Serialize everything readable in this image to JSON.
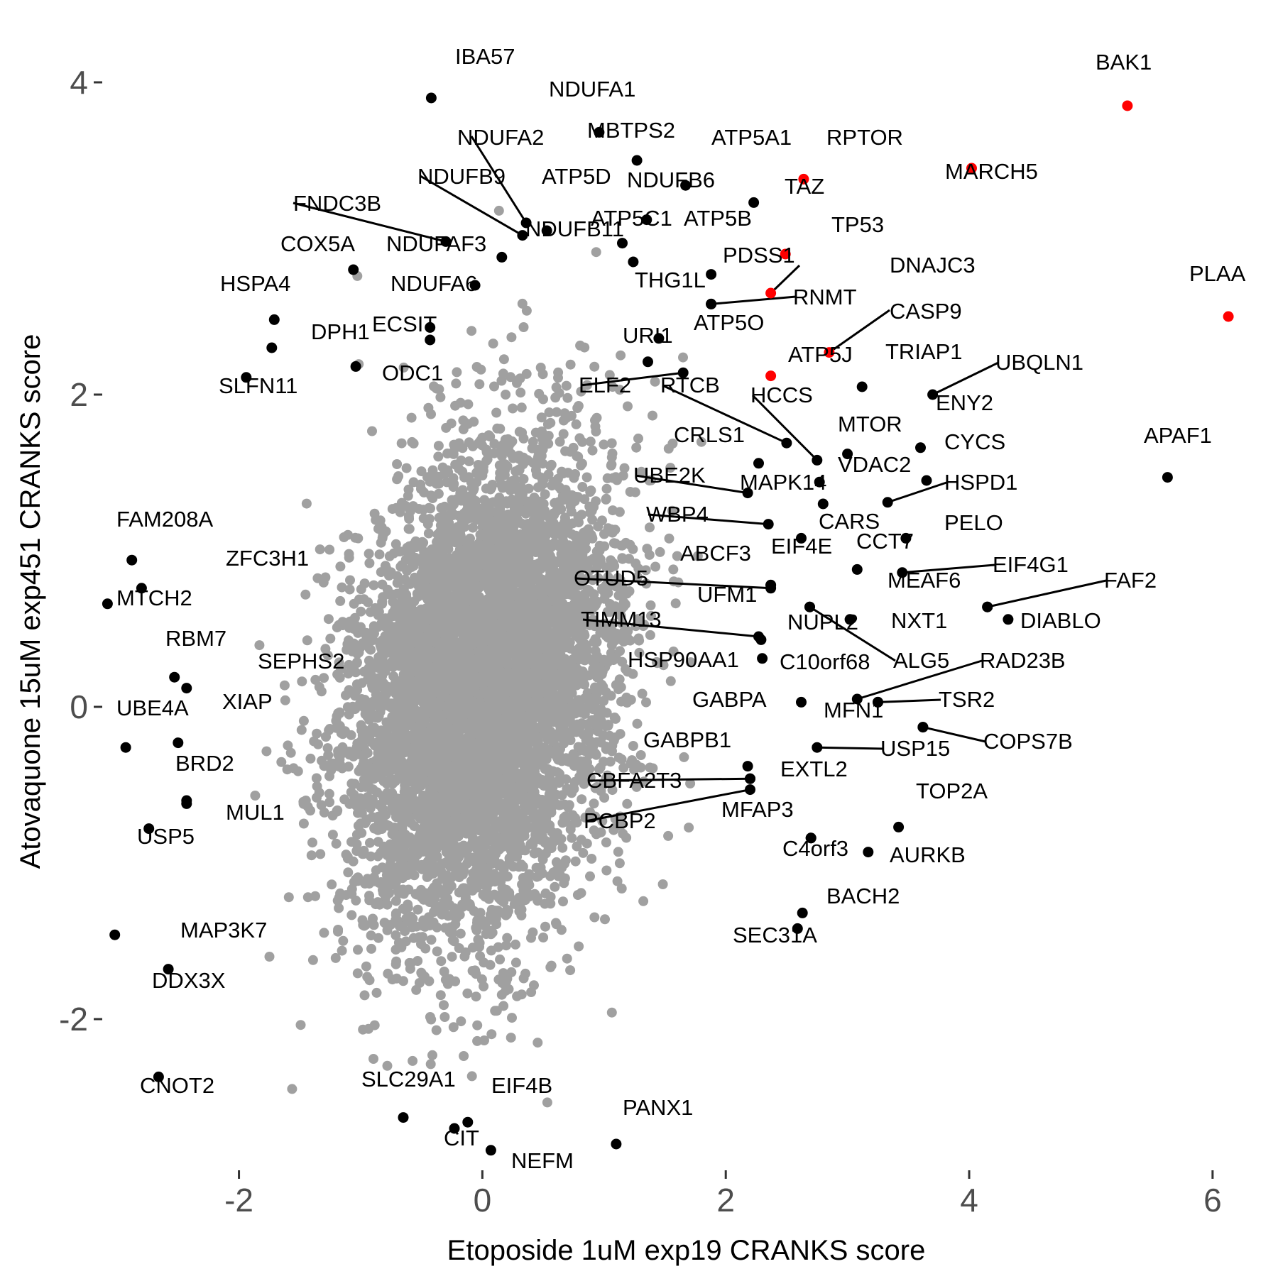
{
  "chart_data": {
    "type": "scatter",
    "title": "",
    "xlabel": "Etoposide 1uM exp19 CRANKS score",
    "ylabel": "Atovaquone 15uM exp451 CRANKS score",
    "xlim": [
      -3.1,
      6.45
    ],
    "ylim": [
      -2.95,
      4.3
    ],
    "x_ticks": [
      -2,
      0,
      2,
      4,
      6
    ],
    "y_ticks": [
      -2,
      0,
      2,
      4
    ],
    "x_tick_labels": [
      "-2",
      "0",
      "2",
      "4",
      "6"
    ],
    "y_tick_labels": [
      "-2",
      "0",
      "2",
      "4"
    ],
    "grid": false,
    "legend": "none",
    "colors": {
      "background": "#ffffff",
      "highlight": "#ff0000",
      "labeled": "#000000",
      "background_points": "#a0a0a0",
      "tick_text": "#4d4d4d"
    },
    "background_cloud": {
      "note_points": "several thousand unlabeled genes",
      "center": [
        0.0,
        0.1
      ],
      "sd_x": 0.55,
      "sd_y": 0.75,
      "color": "#a0a0a0"
    },
    "series": [
      {
        "name": "highlighted",
        "color": "#ff0000",
        "points": [
          {
            "label": "BAK1",
            "x": 5.3,
            "y": 3.85
          },
          {
            "label": "MARCH5",
            "x": 4.02,
            "y": 3.45
          },
          {
            "label": "RPTOR",
            "x": 2.64,
            "y": 3.38
          },
          {
            "label": "TP53",
            "x": 2.49,
            "y": 2.9
          },
          {
            "label": "DNAJC3",
            "x": 2.37,
            "y": 2.65
          },
          {
            "label": "CASP9",
            "x": 2.85,
            "y": 2.27
          },
          {
            "label": "ATP5J",
            "x": 2.37,
            "y": 2.12
          },
          {
            "label": "PLAA",
            "x": 6.13,
            "y": 2.5
          }
        ]
      },
      {
        "name": "labeled",
        "color": "#000000",
        "points": [
          {
            "label": "IBA57",
            "x": -0.42,
            "y": 3.9
          },
          {
            "label": "NDUFA1",
            "x": 0.96,
            "y": 3.68
          },
          {
            "label": "MBTPS2",
            "x": 1.27,
            "y": 3.5
          },
          {
            "label": "NDUFA2",
            "x": 0.36,
            "y": 3.1
          },
          {
            "label": "ATP5A1",
            "x": 1.67,
            "y": 3.34
          },
          {
            "label": "ATP5D",
            "x": 0.53,
            "y": 3.05
          },
          {
            "label": "NDUFB9",
            "x": 0.33,
            "y": 3.02
          },
          {
            "label": "NDUFB6",
            "x": 1.35,
            "y": 3.12
          },
          {
            "label": "TAZ",
            "x": 2.23,
            "y": 3.23
          },
          {
            "label": "FNDC3B",
            "x": -0.3,
            "y": 2.98
          },
          {
            "label": "ATP5C1",
            "x": 1.15,
            "y": 2.97
          },
          {
            "label": "ATP5B",
            "x": 1.24,
            "y": 2.85
          },
          {
            "label": "NDUFB11",
            "x": 0.16,
            "y": 2.88
          },
          {
            "label": "COX5A",
            "x": -1.06,
            "y": 2.8
          },
          {
            "label": "NDUFAF3",
            "x": -0.06,
            "y": 2.7
          },
          {
            "label": "PDSS1",
            "x": 1.88,
            "y": 2.77
          },
          {
            "label": "NDUFA6",
            "x": -0.43,
            "y": 2.43
          },
          {
            "label": "THG1L",
            "x": 1.88,
            "y": 2.58
          },
          {
            "label": "RNMT",
            "x": 1.88,
            "y": 2.58
          },
          {
            "label": "HSPA4",
            "x": -1.71,
            "y": 2.48
          },
          {
            "label": "DPH1",
            "x": -1.73,
            "y": 2.3
          },
          {
            "label": "ECSIT",
            "x": -0.43,
            "y": 2.35
          },
          {
            "label": "ATP5O",
            "x": 1.45,
            "y": 2.36
          },
          {
            "label": "URI1",
            "x": 1.36,
            "y": 2.21
          },
          {
            "label": "ODC1",
            "x": -1.04,
            "y": 2.18
          },
          {
            "label": "SLFN11",
            "x": -1.94,
            "y": 2.11
          },
          {
            "label": "TRIAP1",
            "x": 3.12,
            "y": 2.05
          },
          {
            "label": "UBQLN1",
            "x": 3.7,
            "y": 2.0
          },
          {
            "label": "ELF2",
            "x": 1.65,
            "y": 2.14
          },
          {
            "label": "RTCB",
            "x": 2.5,
            "y": 1.69
          },
          {
            "label": "HCCS",
            "x": 2.75,
            "y": 1.58
          },
          {
            "label": "ENY2",
            "x": 3.0,
            "y": 1.62
          },
          {
            "label": "MTOR",
            "x": 3.6,
            "y": 1.66
          },
          {
            "label": "CRLS1",
            "x": 2.27,
            "y": 1.56
          },
          {
            "label": "CYCS",
            "x": 3.65,
            "y": 1.45
          },
          {
            "label": "VDAC2",
            "x": 2.77,
            "y": 1.44
          },
          {
            "label": "UBE2K",
            "x": 2.18,
            "y": 1.37
          },
          {
            "label": "MAPK14",
            "x": 2.8,
            "y": 1.3
          },
          {
            "label": "HSPD1",
            "x": 3.33,
            "y": 1.31
          },
          {
            "label": "WBP4",
            "x": 2.35,
            "y": 1.17
          },
          {
            "label": "CARS",
            "x": 2.62,
            "y": 1.08
          },
          {
            "label": "PELO",
            "x": 3.48,
            "y": 1.08
          },
          {
            "label": "APAF1",
            "x": 5.63,
            "y": 1.47
          },
          {
            "label": "CCT7",
            "x": 3.08,
            "y": 0.88
          },
          {
            "label": "ABCF3",
            "x": 2.37,
            "y": 0.78
          },
          {
            "label": "EIF4E",
            "x": 2.37,
            "y": 0.78
          },
          {
            "label": "EIF4G1",
            "x": 3.45,
            "y": 0.86
          },
          {
            "label": "OTUD5",
            "x": 2.37,
            "y": 0.76
          },
          {
            "label": "MEAF6",
            "x": 4.15,
            "y": 0.64
          },
          {
            "label": "FAF2",
            "x": 4.15,
            "y": 0.64
          },
          {
            "label": "DIABLO",
            "x": 4.32,
            "y": 0.56
          },
          {
            "label": "UFM1",
            "x": 2.69,
            "y": 0.64
          },
          {
            "label": "NXT1",
            "x": 3.02,
            "y": 0.56
          },
          {
            "label": "TIMM13",
            "x": 2.27,
            "y": 0.45
          },
          {
            "label": "NUPL2",
            "x": 2.29,
            "y": 0.43
          },
          {
            "label": "HSP90AA1",
            "x": 2.3,
            "y": 0.31
          },
          {
            "label": "ALG5",
            "x": 2.69,
            "y": 0.64
          },
          {
            "label": "RAD23B",
            "x": 3.08,
            "y": 0.05
          },
          {
            "label": "C10orf68",
            "x": 3.25,
            "y": 0.03
          },
          {
            "label": "TSR2",
            "x": 3.25,
            "y": 0.03
          },
          {
            "label": "GABPA",
            "x": 2.62,
            "y": 0.03
          },
          {
            "label": "MFN1",
            "x": 3.62,
            "y": -0.13
          },
          {
            "label": "COPS7B",
            "x": 3.62,
            "y": -0.13
          },
          {
            "label": "USP15",
            "x": 2.75,
            "y": -0.26
          },
          {
            "label": "GABPB1",
            "x": 2.18,
            "y": -0.38
          },
          {
            "label": "EXTL2",
            "x": 2.2,
            "y": -0.46
          },
          {
            "label": "CBFA2T3",
            "x": 2.2,
            "y": -0.46
          },
          {
            "label": "PCBP2",
            "x": 2.2,
            "y": -0.53
          },
          {
            "label": "MFAP3",
            "x": 2.7,
            "y": -0.84
          },
          {
            "label": "TOP2A",
            "x": 3.42,
            "y": -0.77
          },
          {
            "label": "AURKB",
            "x": 3.17,
            "y": -0.93
          },
          {
            "label": "C4orf3",
            "x": 2.7,
            "y": -0.84
          },
          {
            "label": "BACH2",
            "x": 2.63,
            "y": -1.32
          },
          {
            "label": "SEC31A",
            "x": 2.59,
            "y": -1.42
          },
          {
            "label": "FAM208A",
            "x": -2.88,
            "y": 0.94
          },
          {
            "label": "ZFC3H1",
            "x": -2.8,
            "y": 0.76
          },
          {
            "label": "MTCH2",
            "x": -3.08,
            "y": 0.66
          },
          {
            "label": "RBM7",
            "x": -2.53,
            "y": 0.19
          },
          {
            "label": "SEPHS2",
            "x": -2.43,
            "y": 0.12
          },
          {
            "label": "XIAP",
            "x": -2.5,
            "y": -0.23
          },
          {
            "label": "UBE4A",
            "x": -2.93,
            "y": -0.26
          },
          {
            "label": "BRD2",
            "x": -2.43,
            "y": -0.6
          },
          {
            "label": "MUL1",
            "x": -2.43,
            "y": -0.62
          },
          {
            "label": "USP5",
            "x": -2.74,
            "y": -0.78
          },
          {
            "label": "MAP3K7",
            "x": -3.02,
            "y": -1.46
          },
          {
            "label": "DDX3X",
            "x": -2.58,
            "y": -1.68
          },
          {
            "label": "CNOT2",
            "x": -2.66,
            "y": -2.37
          },
          {
            "label": "SLC29A1",
            "x": -0.65,
            "y": -2.63
          },
          {
            "label": "EIF4B",
            "x": -0.12,
            "y": -2.66
          },
          {
            "label": "CIT",
            "x": -0.23,
            "y": -2.7
          },
          {
            "label": "NEFM",
            "x": 0.07,
            "y": -2.84
          },
          {
            "label": "PANX1",
            "x": 1.1,
            "y": -2.8
          }
        ]
      }
    ]
  }
}
